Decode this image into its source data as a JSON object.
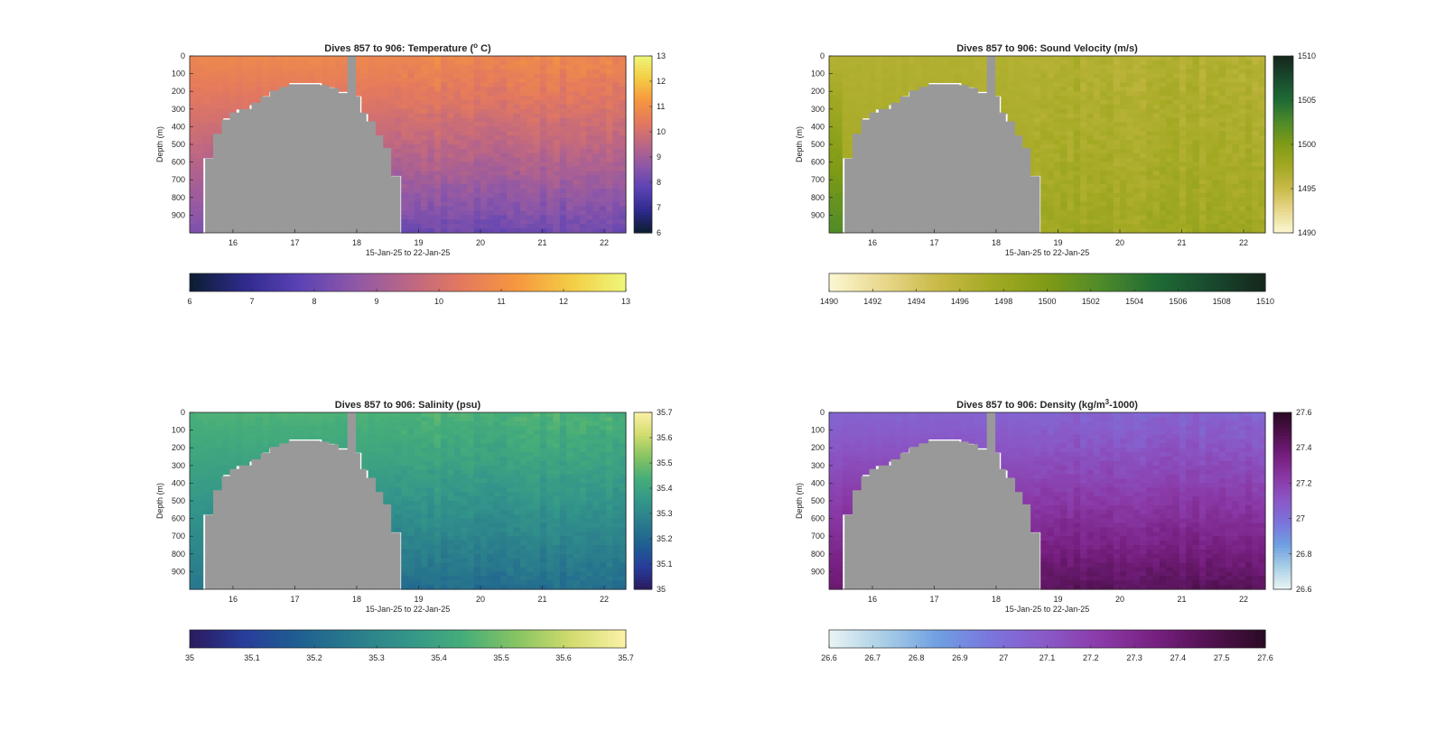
{
  "figure": {
    "background": "#ffffff",
    "axis_color": "#262626",
    "mask_color": "#999999"
  },
  "chart_data": [
    {
      "type": "heatmap",
      "title": "Dives 857 to 906: Temperature (° C)",
      "title_parts": {
        "main": "Dives 857 to 906: Temperature (",
        "sup": "o",
        "tail": " C)"
      },
      "xlabel": "15-Jan-25 to 22-Jan-25",
      "ylabel": "Depth (m)",
      "xlim": [
        15.3,
        22.35
      ],
      "ylim": [
        0,
        1000
      ],
      "y_reversed": true,
      "xticks": [
        16,
        17,
        18,
        19,
        20,
        21,
        22
      ],
      "yticks": [
        0,
        100,
        200,
        300,
        400,
        500,
        600,
        700,
        800,
        900
      ],
      "clim": [
        6,
        13
      ],
      "side_colorbar_ticks": [
        "13",
        "12",
        "11",
        "10",
        "9",
        "8",
        "7",
        "6"
      ],
      "bottom_colorbar_ticks": [
        "6",
        "7",
        "8",
        "9",
        "10",
        "11",
        "12",
        "13"
      ],
      "colormap": [
        "#0b1d30",
        "#2f2a8c",
        "#5a42b4",
        "#8d57a8",
        "#bb6685",
        "#e4795e",
        "#f6973f",
        "#f4cd45",
        "#eef77a"
      ],
      "profile": {
        "surface": 10.8,
        "deep": 8.1,
        "left_deep": 8.4
      },
      "grid": false
    },
    {
      "type": "heatmap",
      "title": "Dives 857 to 906: Sound Velocity (m/s)",
      "title_parts": {
        "main": "Dives 857 to 906: Sound Velocity (m/s)",
        "sup": "",
        "tail": ""
      },
      "xlabel": "15-Jan-25 to 22-Jan-25",
      "ylabel": "Depth (m)",
      "xlim": [
        15.3,
        22.35
      ],
      "ylim": [
        0,
        1000
      ],
      "y_reversed": true,
      "xticks": [
        16,
        17,
        18,
        19,
        20,
        21,
        22
      ],
      "yticks": [
        0,
        100,
        200,
        300,
        400,
        500,
        600,
        700,
        800,
        900
      ],
      "clim": [
        1490,
        1510
      ],
      "side_colorbar_ticks": [
        "1510",
        "1505",
        "1500",
        "1495",
        "1490"
      ],
      "bottom_colorbar_ticks": [
        "1490",
        "1492",
        "1494",
        "1496",
        "1498",
        "1500",
        "1502",
        "1504",
        "1506",
        "1508",
        "1510"
      ],
      "colormap": [
        "#fbf7d2",
        "#e8d88c",
        "#c9ba48",
        "#a3a923",
        "#7f9b16",
        "#4e8a2a",
        "#1f6b35",
        "#184a2e",
        "#16261c"
      ],
      "profile": {
        "surface": 1496.5,
        "deep": 1497.8,
        "left_deep": 1502.5
      },
      "grid": false
    },
    {
      "type": "heatmap",
      "title": "Dives 857 to 906: Salinity (psu)",
      "title_parts": {
        "main": "Dives 857 to 906: Salinity (psu)",
        "sup": "",
        "tail": ""
      },
      "xlabel": "15-Jan-25 to 22-Jan-25",
      "ylabel": "Depth (m)",
      "xlim": [
        15.3,
        22.35
      ],
      "ylim": [
        0,
        1000
      ],
      "y_reversed": true,
      "xticks": [
        16,
        17,
        18,
        19,
        20,
        21,
        22
      ],
      "yticks": [
        0,
        100,
        200,
        300,
        400,
        500,
        600,
        700,
        800,
        900
      ],
      "clim": [
        35,
        35.7
      ],
      "side_colorbar_ticks": [
        "35.7",
        "35.6",
        "35.5",
        "35.4",
        "35.3",
        "35.2",
        "35.1",
        "35"
      ],
      "bottom_colorbar_ticks": [
        "35",
        "35.1",
        "35.2",
        "35.3",
        "35.4",
        "35.5",
        "35.6",
        "35.7"
      ],
      "colormap": [
        "#2a1a5e",
        "#283d9a",
        "#1e5f91",
        "#2a7c8c",
        "#33968a",
        "#45ad7a",
        "#86c462",
        "#d2dc6e",
        "#fbf1a8"
      ],
      "profile": {
        "surface": 35.45,
        "deep": 35.22,
        "left_deep": 35.25
      },
      "grid": false
    },
    {
      "type": "heatmap",
      "title": "Dives 857 to 906: Density (kg/m³-1000)",
      "title_parts": {
        "main": "Dives 857 to 906: Density (kg/m",
        "sup": "3",
        "tail": "-1000)"
      },
      "xlabel": "15-Jan-25 to 22-Jan-25",
      "ylabel": "Depth (m)",
      "xlim": [
        15.3,
        22.35
      ],
      "ylim": [
        0,
        1000
      ],
      "y_reversed": true,
      "xticks": [
        16,
        17,
        18,
        19,
        20,
        21,
        22
      ],
      "yticks": [
        0,
        100,
        200,
        300,
        400,
        500,
        600,
        700,
        800,
        900
      ],
      "clim": [
        26.6,
        27.6
      ],
      "side_colorbar_ticks": [
        "27.6",
        "27.4",
        "27.2",
        "27",
        "26.8",
        "26.6"
      ],
      "bottom_colorbar_ticks": [
        "26.6",
        "26.7",
        "26.8",
        "26.9",
        "27",
        "27.1",
        "27.2",
        "27.3",
        "27.4",
        "27.5",
        "27.6"
      ],
      "colormap": [
        "#eaf4f4",
        "#a9cfe6",
        "#6f9fe2",
        "#7b74dc",
        "#8a58c7",
        "#8a3aa7",
        "#761f80",
        "#51114f",
        "#2a0a24"
      ],
      "profile": {
        "surface": 27.05,
        "deep": 27.45,
        "left_deep": 27.4
      },
      "grid": false
    }
  ],
  "mask": {
    "description_none": "",
    "no_data_region_columns": [
      {
        "from": 15.55,
        "to": 15.68,
        "depth": 580
      },
      {
        "from": 15.68,
        "to": 15.82,
        "depth": 440
      },
      {
        "from": 15.82,
        "to": 15.95,
        "depth": 360
      },
      {
        "from": 15.95,
        "to": 16.1,
        "depth": 320
      },
      {
        "from": 16.1,
        "to": 16.3,
        "depth": 300
      },
      {
        "from": 16.3,
        "to": 16.45,
        "depth": 265
      },
      {
        "from": 16.45,
        "to": 16.6,
        "depth": 230
      },
      {
        "from": 16.6,
        "to": 16.75,
        "depth": 195
      },
      {
        "from": 16.75,
        "to": 16.9,
        "depth": 175
      },
      {
        "from": 16.9,
        "to": 17.4,
        "depth": 160
      },
      {
        "from": 17.4,
        "to": 17.55,
        "depth": 165
      },
      {
        "from": 17.55,
        "to": 17.7,
        "depth": 180
      },
      {
        "from": 17.7,
        "to": 17.85,
        "depth": 210
      },
      {
        "from": 17.85,
        "to": 17.98,
        "depth": 0
      },
      {
        "from": 17.98,
        "to": 18.05,
        "depth": 230
      },
      {
        "from": 18.05,
        "to": 18.15,
        "depth": 320
      },
      {
        "from": 18.15,
        "to": 18.3,
        "depth": 370
      },
      {
        "from": 18.3,
        "to": 18.42,
        "depth": 450
      },
      {
        "from": 18.42,
        "to": 18.55,
        "depth": 520
      },
      {
        "from": 18.55,
        "to": 18.7,
        "depth": 680
      }
    ]
  }
}
